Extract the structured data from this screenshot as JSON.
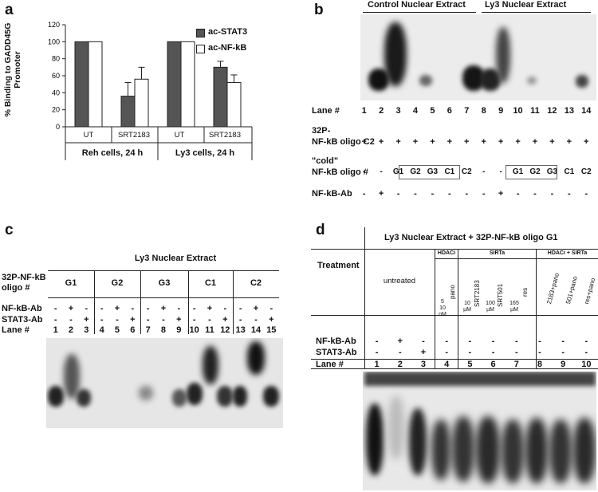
{
  "panels": {
    "a": "a",
    "b": "b",
    "c": "c",
    "d": "d"
  },
  "panel_a": {
    "ylabel": "% Binding to GADD45G Promoter",
    "yticks": [
      "0",
      "20",
      "40",
      "60",
      "80",
      "100",
      "120"
    ],
    "legend": [
      "ac-STAT3",
      "ac-NF-kB"
    ],
    "xticks": [
      "UT",
      "SRT2183",
      "UT",
      "SRT2183"
    ],
    "groups": [
      "Reh cells, 24 h",
      "Ly3 cells, 24 h"
    ],
    "colors": {
      "stat3": "#555555",
      "nfkb": "#ffffff"
    }
  },
  "chart_data": {
    "type": "bar",
    "categories": [
      "Reh UT",
      "Reh SRT2183",
      "Ly3 UT",
      "Ly3 SRT2183"
    ],
    "series": [
      {
        "name": "ac-STAT3",
        "values": [
          100,
          36,
          100,
          70
        ],
        "errors": [
          0,
          16,
          0,
          7
        ]
      },
      {
        "name": "ac-NF-kB",
        "values": [
          100,
          56,
          100,
          52
        ],
        "errors": [
          0,
          14,
          0,
          9
        ]
      }
    ],
    "ylabel": "% Binding to GADD45G Promoter",
    "ylim": [
      0,
      120
    ]
  },
  "panel_b": {
    "header_left": "Control Nuclear Extract",
    "header_right": "Ly3 Nuclear Extract",
    "lane_label": "Lane #",
    "lanes": [
      "1",
      "2",
      "3",
      "4",
      "5",
      "6",
      "7",
      "8",
      "9",
      "10",
      "11",
      "12",
      "13",
      "14"
    ],
    "probe_label_1": "32P-",
    "probe_label_2": "NF-kB oligo C2",
    "probe_marks": [
      "+",
      "+",
      "+",
      "+",
      "+",
      "+",
      "+",
      "+",
      "+",
      "+",
      "+",
      "+",
      "+",
      "+"
    ],
    "cold_label_1": "\"cold\"",
    "cold_label_2": "NF-kB oligo #",
    "cold_marks": [
      "-",
      "-",
      "G1",
      "G2",
      "G3",
      "C1",
      "C2",
      "-",
      "-",
      "G1",
      "G2",
      "G3",
      "C1",
      "C2"
    ],
    "ab_label": "NF-kB-Ab",
    "ab_marks": [
      "-",
      "+",
      "-",
      "-",
      "-",
      "-",
      "-",
      "-",
      "+",
      "-",
      "-",
      "-",
      "-",
      "-"
    ]
  },
  "panel_c": {
    "title": "Ly3 Nuclear Extract",
    "oligo_label_1": "32P-NF-kB",
    "oligo_label_2": "oligo #",
    "groups": [
      "G1",
      "G2",
      "G3",
      "C1",
      "C2"
    ],
    "nfkb_ab_label": "NF-kB-Ab",
    "stat3_ab_label": "STAT3-Ab",
    "lane_label": "Lane #",
    "nfkb_marks": [
      "-",
      "+",
      "-",
      "-",
      "+",
      "-",
      "-",
      "+",
      "-",
      "-",
      "+",
      "-",
      "-",
      "+",
      "-"
    ],
    "stat3_marks": [
      "-",
      "-",
      "+",
      "-",
      "-",
      "+",
      "-",
      "-",
      "+",
      "-",
      "-",
      "+",
      "-",
      "-",
      "+"
    ],
    "lanes": [
      "1",
      "2",
      "3",
      "4",
      "5",
      "6",
      "7",
      "8",
      "9",
      "10",
      "11",
      "12",
      "13",
      "14",
      "15"
    ]
  },
  "panel_d": {
    "title": "Ly3 Nuclear Extract + 32P-NF-kB  oligo G1",
    "treatment_label": "Treatment",
    "untreated": "untreated",
    "hdaci": "HDACi",
    "sirta": "SIRTa",
    "hdaci_sirta": "HDACi + SIRTa",
    "treatments": [
      "pano",
      "SRT2183",
      "SRT501",
      "res",
      "2183+pano",
      "501+pano",
      "res+pano"
    ],
    "conc_pano": [
      "5",
      "10",
      "nM"
    ],
    "conc_2183": [
      "10",
      "µM"
    ],
    "conc_501": [
      "100",
      "µM"
    ],
    "conc_res": [
      "165",
      "µM"
    ],
    "nfkb_ab_label": "NF-kB-Ab",
    "stat3_ab_label": "STAT3-Ab",
    "lane_label": "Lane #",
    "nfkb_marks": [
      "-",
      "+",
      "-",
      "-",
      "-",
      "-",
      "-",
      "-",
      "-",
      "-"
    ],
    "stat3_marks": [
      "-",
      "-",
      "+",
      "-",
      "-",
      "-",
      "-",
      "-",
      "-",
      "-"
    ],
    "lanes": [
      "1",
      "2",
      "3",
      "4",
      "5",
      "6",
      "7",
      "8",
      "9",
      "10"
    ]
  }
}
